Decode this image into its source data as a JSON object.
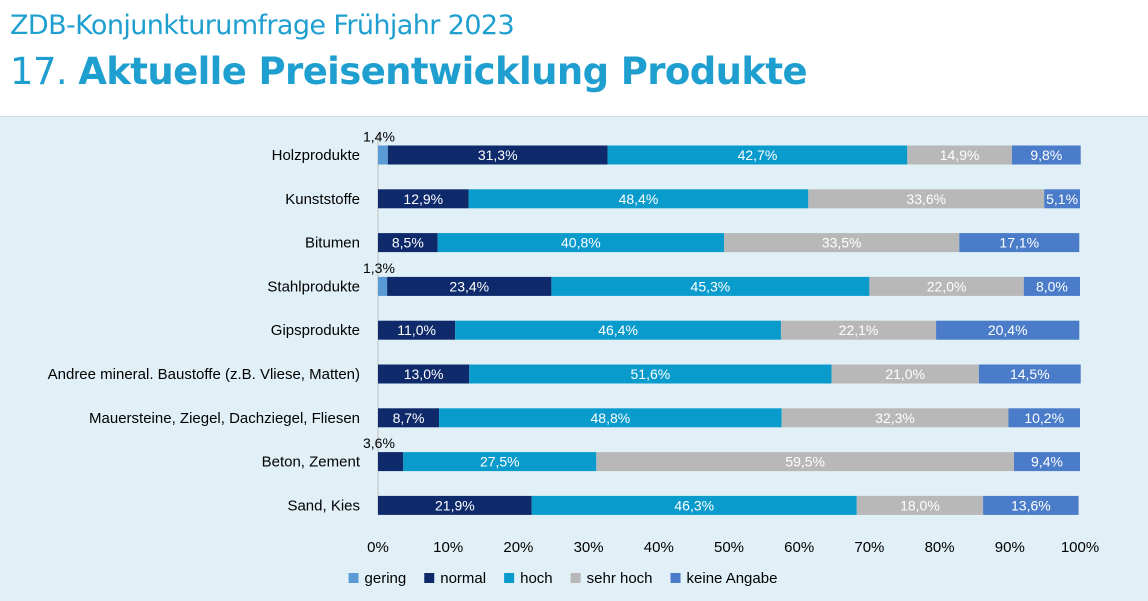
{
  "header": {
    "subtitle": "ZDB-Konjunkturumfrage Frühjahr 2023",
    "title_number": "17.",
    "title_text": "Aktuelle Preisentwicklung Produkte"
  },
  "chart_data": {
    "type": "bar",
    "orientation": "horizontal",
    "stacked": true,
    "categories": [
      "Holzprodukte",
      "Kunststoffe",
      "Bitumen",
      "Stahlprodukte",
      "Gipsprodukte",
      "Andree mineral. Baustoffe (z.B. Vliese, Matten)",
      "Mauersteine, Ziegel, Dachziegel, Fliesen",
      "Beton, Zement",
      "Sand, Kies"
    ],
    "series": [
      {
        "name": "gering",
        "color": "#5b9bd5",
        "values": [
          1.4,
          0,
          0,
          1.3,
          0,
          0,
          0,
          0,
          0
        ]
      },
      {
        "name": "normal",
        "color": "#0e2a6b",
        "values": [
          31.3,
          12.9,
          8.5,
          23.4,
          11.0,
          13.0,
          8.7,
          3.6,
          21.9
        ]
      },
      {
        "name": "hoch",
        "color": "#0a9bcd",
        "values": [
          42.7,
          48.4,
          40.8,
          45.3,
          46.4,
          51.6,
          48.8,
          27.5,
          46.3
        ]
      },
      {
        "name": "sehr hoch",
        "color": "#b8b8b8",
        "values": [
          14.9,
          33.6,
          33.5,
          22.0,
          22.1,
          21.0,
          32.3,
          59.5,
          18.0
        ]
      },
      {
        "name": "keine Angabe",
        "color": "#4a7cc9",
        "values": [
          9.8,
          5.1,
          17.1,
          8.0,
          20.4,
          14.5,
          10.2,
          9.4,
          13.6
        ]
      }
    ],
    "data_labels": [
      [
        "1,4%",
        "31,3%",
        "42,7%",
        "14,9%",
        "9,8%"
      ],
      [
        "",
        "12,9%",
        "48,4%",
        "33,6%",
        "5,1%"
      ],
      [
        "",
        "8,5%",
        "40,8%",
        "33,5%",
        "17,1%"
      ],
      [
        "1,3%",
        "23,4%",
        "45,3%",
        "22,0%",
        "8,0%"
      ],
      [
        "",
        "11,0%",
        "46,4%",
        "22,1%",
        "20,4%"
      ],
      [
        "",
        "13,0%",
        "51,6%",
        "21,0%",
        "14,5%"
      ],
      [
        "",
        "8,7%",
        "48,8%",
        "32,3%",
        "10,2%"
      ],
      [
        "",
        "3,6%",
        "27,5%",
        "59,5%",
        "9,4%"
      ],
      [
        "",
        "21,9%",
        "46,3%",
        "18,0%",
        "13,6%"
      ]
    ],
    "xlim": [
      0,
      100
    ],
    "x_ticks": [
      0,
      10,
      20,
      30,
      40,
      50,
      60,
      70,
      80,
      90,
      100
    ],
    "x_tick_labels": [
      "0%",
      "10%",
      "20%",
      "30%",
      "40%",
      "50%",
      "60%",
      "70%",
      "80%",
      "90%",
      "100%"
    ],
    "title": "",
    "xlabel": "",
    "ylabel": "",
    "grid": false,
    "legend_position": "bottom"
  }
}
